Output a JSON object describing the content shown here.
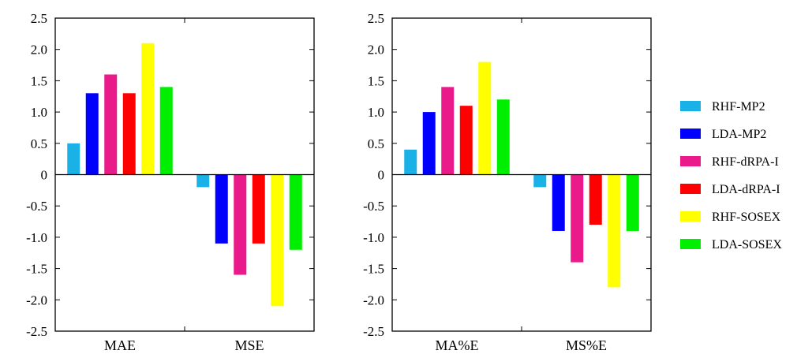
{
  "chart_data": [
    {
      "type": "bar",
      "categories": [
        "MAE",
        "MSE"
      ],
      "ylim": [
        -2.5,
        2.5
      ],
      "yticks": [
        "2.5",
        "2.0",
        "1.5",
        "1.0",
        "0.5",
        "0",
        "-0.5",
        "-1.0",
        "-1.5",
        "-2.0",
        "-2.5"
      ],
      "series": [
        {
          "name": "RHF-MP2",
          "values": [
            0.5,
            -0.2
          ]
        },
        {
          "name": "LDA-MP2",
          "values": [
            1.3,
            -1.1
          ]
        },
        {
          "name": "RHF-dRPA-I",
          "values": [
            1.6,
            -1.6
          ]
        },
        {
          "name": "LDA-dRPA-I",
          "values": [
            1.3,
            -1.1
          ]
        },
        {
          "name": "RHF-SOSEX",
          "values": [
            2.1,
            -2.1
          ]
        },
        {
          "name": "LDA-SOSEX",
          "values": [
            1.4,
            -1.2
          ]
        }
      ]
    },
    {
      "type": "bar",
      "categories": [
        "MA%E",
        "MS%E"
      ],
      "ylim": [
        -2.5,
        2.5
      ],
      "yticks": [
        "2.5",
        "2.0",
        "1.5",
        "1.0",
        "0.5",
        "0",
        "-0.5",
        "-1.0",
        "-1.5",
        "-2.0",
        "-2.5"
      ],
      "series": [
        {
          "name": "RHF-MP2",
          "values": [
            0.4,
            -0.2
          ]
        },
        {
          "name": "LDA-MP2",
          "values": [
            1.0,
            -0.9
          ]
        },
        {
          "name": "RHF-dRPA-I",
          "values": [
            1.4,
            -1.4
          ]
        },
        {
          "name": "LDA-dRPA-I",
          "values": [
            1.1,
            -0.8
          ]
        },
        {
          "name": "RHF-SOSEX",
          "values": [
            1.8,
            -1.8
          ]
        },
        {
          "name": "LDA-SOSEX",
          "values": [
            1.2,
            -0.9
          ]
        }
      ]
    }
  ],
  "legend": {
    "placement": "right",
    "items": [
      {
        "label": "RHF-MP2",
        "color": "#1ab2e6"
      },
      {
        "label": "LDA-MP2",
        "color": "#0000ff"
      },
      {
        "label": "RHF-dRPA-I",
        "color": "#ea1a8a"
      },
      {
        "label": "LDA-dRPA-I",
        "color": "#ff0000"
      },
      {
        "label": "RHF-SOSEX",
        "color": "#ffff00"
      },
      {
        "label": "LDA-SOSEX",
        "color": "#00ee00"
      }
    ]
  },
  "colors": [
    "#1ab2e6",
    "#0000ff",
    "#ea1a8a",
    "#ff0000",
    "#ffff00",
    "#00ee00"
  ]
}
